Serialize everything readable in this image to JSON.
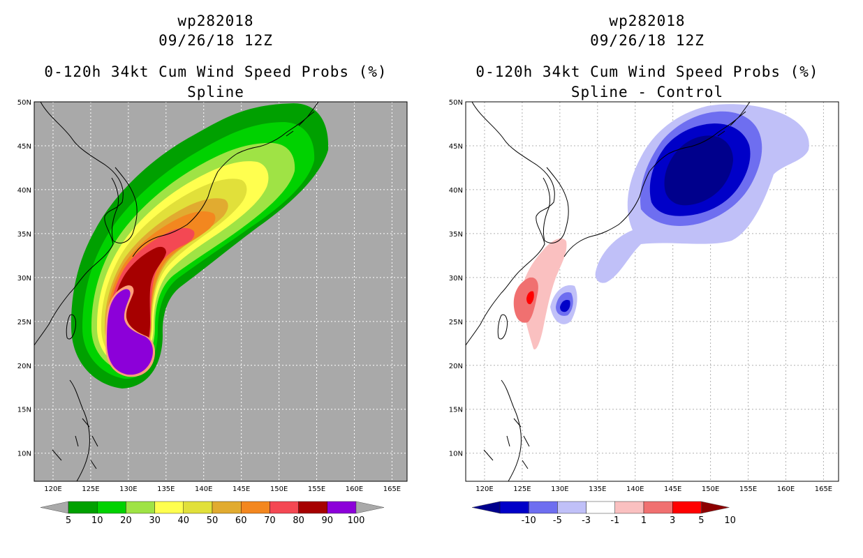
{
  "left_panel": {
    "storm_id": "wp282018",
    "datetime": "09/26/18 12Z",
    "product": "0-120h 34kt Cum Wind Speed Probs (%)",
    "subtitle": "Spline",
    "background_color": "#a9a9a9"
  },
  "right_panel": {
    "storm_id": "wp282018",
    "datetime": "09/26/18 12Z",
    "product": "0-120h 34kt Cum Wind Speed Probs (%)",
    "subtitle": "Spline - Control",
    "background_color": "#ffffff"
  },
  "axes": {
    "lat_labels": [
      "50N",
      "45N",
      "40N",
      "35N",
      "30N",
      "25N",
      "20N",
      "15N",
      "10N"
    ],
    "lat_values": [
      50,
      45,
      40,
      35,
      30,
      25,
      20,
      15,
      10
    ],
    "lon_labels": [
      "120E",
      "125E",
      "130E",
      "135E",
      "140E",
      "145E",
      "150E",
      "155E",
      "160E",
      "165E"
    ],
    "lon_values": [
      120,
      125,
      130,
      135,
      140,
      145,
      150,
      155,
      160,
      165
    ],
    "lon_range": [
      117.5,
      167.0
    ],
    "lat_range": [
      6.8,
      50.0
    ]
  },
  "left_colorbar": {
    "labels": [
      "5",
      "10",
      "20",
      "30",
      "40",
      "50",
      "60",
      "70",
      "80",
      "90",
      "100"
    ],
    "colors": [
      "#00a000",
      "#00d200",
      "#9fe345",
      "#ffff4f",
      "#e1e03a",
      "#e1ab30",
      "#f3871f",
      "#f44853",
      "#a60000",
      "#8c00d9"
    ],
    "end_color": "#a9a9a9"
  },
  "right_colorbar": {
    "labels": [
      "-10",
      "-5",
      "-3",
      "-1",
      "1",
      "3",
      "5",
      "10"
    ],
    "colors": [
      "#0000c8",
      "#6e6ef0",
      "#c0c0f8",
      "#ffffff",
      "#fac0c0",
      "#f07070",
      "#ff0000"
    ],
    "left_end_color": "#00008c",
    "right_end_color": "#8c0000"
  }
}
